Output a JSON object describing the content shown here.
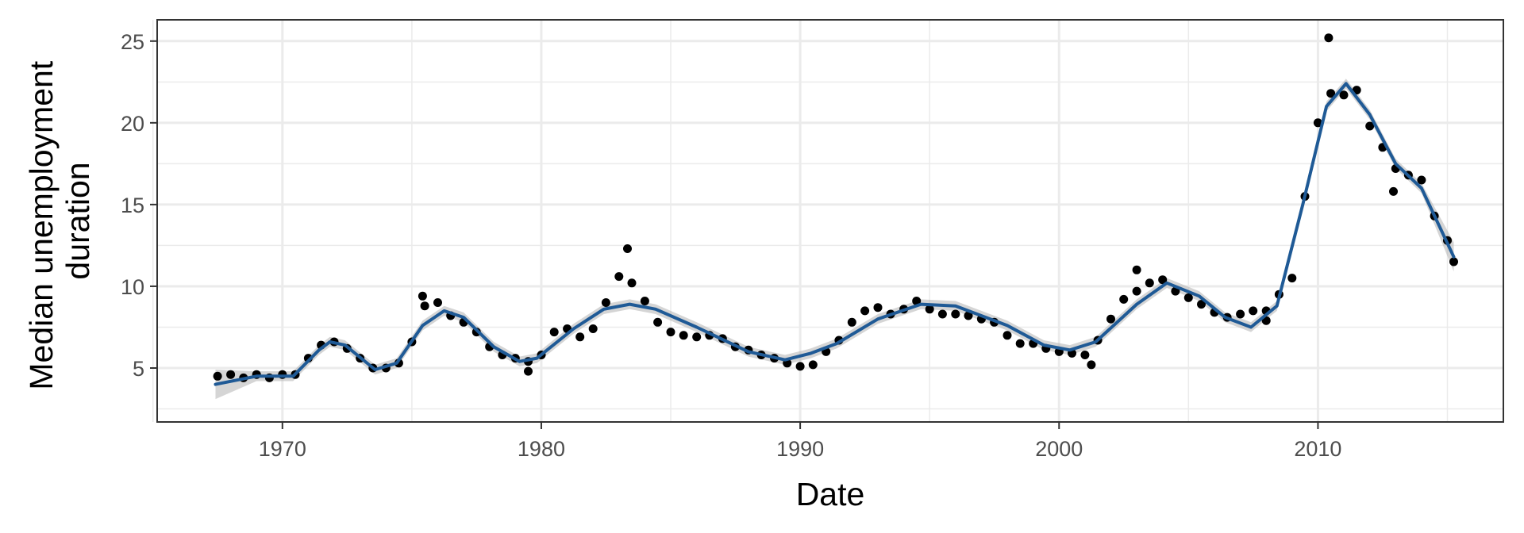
{
  "chart_data": {
    "type": "scatter",
    "title": "",
    "xlabel": "Date",
    "ylabel": [
      "Median unemployment",
      "duration"
    ],
    "x_ticks": [
      "1970",
      "1980",
      "1990",
      "2000",
      "2010"
    ],
    "x_tick_values": [
      "1970-01-01",
      "1980-01-01",
      "1990-01-01",
      "2000-01-01",
      "2010-01-01"
    ],
    "y_ticks": [
      "5",
      "10",
      "15",
      "20",
      "25"
    ],
    "xlim": [
      "1965-03-01",
      "2017-03-01"
    ],
    "ylim": [
      1.7,
      26.3
    ],
    "grid": true,
    "legend": "none",
    "colors": {
      "points": "#000000",
      "smooth": "#1f5a96",
      "ribbon": "#b3b3b3",
      "grid": "#ebebeb",
      "panel_border": "#333333"
    },
    "series": [
      {
        "kind": "points",
        "points": [
          [
            "1967-07-01",
            4.5
          ],
          [
            "1968-01-01",
            4.6
          ],
          [
            "1968-07-01",
            4.4
          ],
          [
            "1969-01-01",
            4.6
          ],
          [
            "1969-07-01",
            4.4
          ],
          [
            "1970-01-01",
            4.6
          ],
          [
            "1970-07-01",
            4.6
          ],
          [
            "1971-01-01",
            5.6
          ],
          [
            "1971-07-01",
            6.4
          ],
          [
            "1972-01-01",
            6.6
          ],
          [
            "1972-07-01",
            6.2
          ],
          [
            "1973-01-01",
            5.6
          ],
          [
            "1973-07-01",
            5.0
          ],
          [
            "1974-01-01",
            5.0
          ],
          [
            "1974-07-01",
            5.3
          ],
          [
            "1975-01-01",
            6.6
          ],
          [
            "1975-07-01",
            8.8
          ],
          [
            "1976-01-01",
            9.0
          ],
          [
            "1976-07-01",
            8.2
          ],
          [
            "1977-01-01",
            7.8
          ],
          [
            "1977-07-01",
            7.2
          ],
          [
            "1978-01-01",
            6.3
          ],
          [
            "1978-07-01",
            5.8
          ],
          [
            "1979-01-01",
            5.6
          ],
          [
            "1979-07-01",
            5.4
          ],
          [
            "1980-01-01",
            5.8
          ],
          [
            "1980-07-01",
            7.2
          ],
          [
            "1981-01-01",
            7.4
          ],
          [
            "1981-07-01",
            6.9
          ],
          [
            "1982-01-01",
            7.4
          ],
          [
            "1982-07-01",
            9.0
          ],
          [
            "1983-01-01",
            10.6
          ],
          [
            "1983-07-01",
            10.2
          ],
          [
            "1984-01-01",
            9.1
          ],
          [
            "1984-07-01",
            7.8
          ],
          [
            "1985-01-01",
            7.2
          ],
          [
            "1985-07-01",
            7.0
          ],
          [
            "1986-01-01",
            6.9
          ],
          [
            "1986-07-01",
            7.0
          ],
          [
            "1987-01-01",
            6.8
          ],
          [
            "1987-07-01",
            6.3
          ],
          [
            "1988-01-01",
            6.1
          ],
          [
            "1988-07-01",
            5.8
          ],
          [
            "1989-01-01",
            5.6
          ],
          [
            "1989-07-01",
            5.3
          ],
          [
            "1990-01-01",
            5.1
          ],
          [
            "1990-07-01",
            5.2
          ],
          [
            "1991-01-01",
            6.0
          ],
          [
            "1991-07-01",
            6.7
          ],
          [
            "1992-01-01",
            7.8
          ],
          [
            "1992-07-01",
            8.5
          ],
          [
            "1993-01-01",
            8.7
          ],
          [
            "1993-07-01",
            8.3
          ],
          [
            "1994-01-01",
            8.6
          ],
          [
            "1994-07-01",
            9.1
          ],
          [
            "1995-01-01",
            8.6
          ],
          [
            "1995-07-01",
            8.3
          ],
          [
            "1996-01-01",
            8.3
          ],
          [
            "1996-07-01",
            8.2
          ],
          [
            "1997-01-01",
            8.0
          ],
          [
            "1997-07-01",
            7.8
          ],
          [
            "1998-01-01",
            7.0
          ],
          [
            "1998-07-01",
            6.5
          ],
          [
            "1999-01-01",
            6.5
          ],
          [
            "1999-07-01",
            6.2
          ],
          [
            "2000-01-01",
            6.0
          ],
          [
            "2000-07-01",
            5.9
          ],
          [
            "2001-01-01",
            5.8
          ],
          [
            "2001-07-01",
            6.7
          ],
          [
            "2002-01-01",
            8.0
          ],
          [
            "2002-07-01",
            9.2
          ],
          [
            "2003-01-01",
            9.7
          ],
          [
            "2003-07-01",
            10.2
          ],
          [
            "2004-01-01",
            10.4
          ],
          [
            "2004-07-01",
            9.7
          ],
          [
            "2005-01-01",
            9.3
          ],
          [
            "2005-07-01",
            8.9
          ],
          [
            "2006-01-01",
            8.4
          ],
          [
            "2006-07-01",
            8.1
          ],
          [
            "2007-01-01",
            8.3
          ],
          [
            "2007-07-01",
            8.5
          ],
          [
            "2008-01-01",
            8.5
          ],
          [
            "2008-07-01",
            9.5
          ],
          [
            "2009-01-01",
            10.5
          ],
          [
            "2009-07-01",
            15.5
          ],
          [
            "2010-01-01",
            20.0
          ],
          [
            "2010-07-01",
            21.8
          ],
          [
            "2011-01-01",
            21.7
          ],
          [
            "2011-07-01",
            22.0
          ],
          [
            "2012-01-01",
            19.8
          ],
          [
            "2012-07-01",
            18.5
          ],
          [
            "2013-01-01",
            17.2
          ],
          [
            "2013-07-01",
            16.8
          ],
          [
            "2014-01-01",
            16.5
          ],
          [
            "2014-07-01",
            14.3
          ],
          [
            "2015-01-01",
            12.8
          ],
          [
            "2015-04-01",
            11.5
          ],
          [
            "1983-05-01",
            12.3
          ],
          [
            "2010-06-01",
            25.2
          ],
          [
            "2008-01-01",
            7.9
          ],
          [
            "1979-07-01",
            4.8
          ],
          [
            "2001-04-01",
            5.2
          ],
          [
            "2003-01-01",
            11.0
          ],
          [
            "2012-12-01",
            15.8
          ],
          [
            "1975-06-01",
            9.4
          ]
        ]
      },
      {
        "kind": "smooth",
        "points": [
          [
            "1967-06-01",
            4.0
          ],
          [
            "1969-01-01",
            4.5
          ],
          [
            "1970-06-01",
            4.5
          ],
          [
            "1971-06-01",
            6.1
          ],
          [
            "1971-11-01",
            6.6
          ],
          [
            "1972-06-01",
            6.4
          ],
          [
            "1973-08-01",
            4.9
          ],
          [
            "1974-06-01",
            5.3
          ],
          [
            "1975-06-01",
            7.6
          ],
          [
            "1976-04-01",
            8.5
          ],
          [
            "1977-01-01",
            8.1
          ],
          [
            "1978-03-01",
            6.3
          ],
          [
            "1979-03-01",
            5.4
          ],
          [
            "1979-11-01",
            5.6
          ],
          [
            "1981-04-01",
            7.4
          ],
          [
            "1982-06-01",
            8.6
          ],
          [
            "1983-06-01",
            8.9
          ],
          [
            "1984-06-01",
            8.6
          ],
          [
            "1986-01-01",
            7.5
          ],
          [
            "1988-01-01",
            6.0
          ],
          [
            "1989-06-01",
            5.5
          ],
          [
            "1990-06-01",
            5.9
          ],
          [
            "1991-06-01",
            6.5
          ],
          [
            "1993-01-01",
            8.0
          ],
          [
            "1994-09-01",
            8.9
          ],
          [
            "1996-01-01",
            8.8
          ],
          [
            "1998-01-01",
            7.6
          ],
          [
            "1999-06-01",
            6.4
          ],
          [
            "2000-06-01",
            6.1
          ],
          [
            "2001-06-01",
            6.6
          ],
          [
            "2003-01-01",
            8.9
          ],
          [
            "2004-03-01",
            10.2
          ],
          [
            "2005-06-01",
            9.4
          ],
          [
            "2006-06-01",
            8.1
          ],
          [
            "2007-06-01",
            7.5
          ],
          [
            "2008-06-01",
            8.8
          ],
          [
            "2009-06-01",
            15.0
          ],
          [
            "2010-05-01",
            21.0
          ],
          [
            "2011-02-01",
            22.4
          ],
          [
            "2012-01-01",
            20.5
          ],
          [
            "2013-01-01",
            17.5
          ],
          [
            "2014-01-01",
            16.0
          ],
          [
            "2015-04-01",
            11.8
          ]
        ]
      }
    ]
  }
}
